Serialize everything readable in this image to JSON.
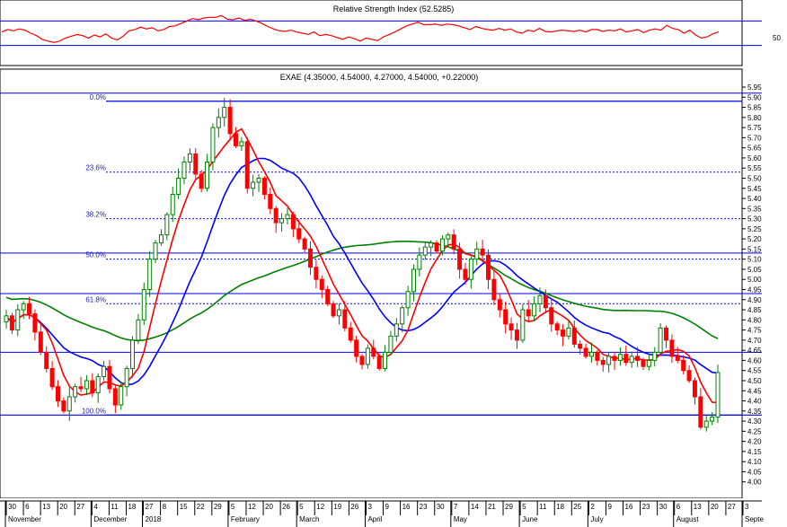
{
  "rsi": {
    "title": "Relative Strength Index (52.5285)",
    "level_label": "50",
    "upper_level": 70,
    "lower_level": 30,
    "line_color": "#ff0000",
    "band_color": "#0000ff"
  },
  "main": {
    "title": "EXAE (4.35000, 4.54000, 4.27000, 4.54000, +0.22000)",
    "colors": {
      "up": "#008000",
      "down": "#ff0000",
      "ma_fast": "#ff0000",
      "ma_mid": "#0000ff",
      "ma_slow": "#008000",
      "fib": "#0000ff"
    }
  },
  "chart_data": [
    {
      "type": "line",
      "title": "Relative Strength Index (52.5285)",
      "ylim": [
        0,
        100
      ],
      "levels": [
        70,
        30
      ],
      "series": [
        {
          "values": [
            52,
            56,
            54,
            57,
            55,
            50,
            46,
            40,
            37,
            35,
            37,
            42,
            45,
            48,
            46,
            42,
            47,
            44,
            49,
            42,
            39,
            45,
            54,
            56,
            60,
            57,
            59,
            54,
            56,
            61,
            62,
            66,
            70,
            74,
            72,
            75,
            76,
            76,
            79,
            73,
            72,
            75,
            71,
            73,
            70,
            66,
            61,
            57,
            54,
            53,
            55,
            52,
            50,
            48,
            52,
            46,
            48,
            46,
            43,
            40,
            44,
            41,
            37,
            42,
            40,
            38,
            44,
            48,
            52,
            57,
            62,
            65,
            68,
            64,
            64,
            65,
            63,
            65,
            64,
            62,
            59,
            56,
            61,
            58,
            56,
            55,
            58,
            55,
            57,
            52,
            50,
            55,
            53,
            58,
            53,
            52,
            54,
            55,
            54,
            53,
            55,
            52,
            56,
            56,
            53,
            55,
            54,
            57,
            52,
            54,
            56,
            51,
            55,
            57,
            55,
            63,
            58,
            56,
            50,
            55,
            47,
            42,
            44,
            49,
            52.5
          ]
        }
      ]
    },
    {
      "type": "candlestick",
      "title": "EXAE (4.35000, 4.54000, 4.27000, 4.54000, +0.22000)",
      "ylim": [
        3.95,
        5.95
      ],
      "y_ticks": [
        "5.95",
        "5.90",
        "5.85",
        "5.80",
        "5.75",
        "5.70",
        "5.65",
        "5.60",
        "5.55",
        "5.50",
        "5.45",
        "5.40",
        "5.35",
        "5.30",
        "5.25",
        "5.20",
        "5.15",
        "5.10",
        "5.05",
        "5.00",
        "4.95",
        "4.90",
        "4.85",
        "4.80",
        "4.75",
        "4.70",
        "4.65",
        "4.60",
        "4.55",
        "4.50",
        "4.45",
        "4.40",
        "4.35",
        "4.30",
        "4.25",
        "4.20",
        "4.15",
        "4.10",
        "4.05",
        "4.00"
      ],
      "x_day_labels": [
        "30",
        "6",
        "13",
        "20",
        "27",
        "4",
        "11",
        "18",
        "27",
        "8",
        "15",
        "22",
        "29",
        "5",
        "12",
        "20",
        "26",
        "5",
        "12",
        "19",
        "26",
        "3",
        "9",
        "16",
        "23",
        "30",
        "7",
        "14",
        "21",
        "29",
        "5",
        "11",
        "18",
        "25",
        "2",
        "9",
        "16",
        "23",
        "30",
        "6",
        "13",
        "20",
        "27",
        "3"
      ],
      "x_month_labels": [
        "November",
        "December",
        "2018",
        "February",
        "March",
        "April",
        "May",
        "June",
        "July",
        "August",
        "Septe"
      ],
      "fibonacci": [
        {
          "label": "0.0%",
          "price": 5.88
        },
        {
          "label": "23.6%",
          "price": 5.53
        },
        {
          "label": "38.2%",
          "price": 5.3
        },
        {
          "label": "50.0%",
          "price": 5.1
        },
        {
          "label": "61.8%",
          "price": 4.88
        },
        {
          "label": "100.0%",
          "price": 4.33
        }
      ],
      "channel_lines": [
        5.92,
        5.13,
        4.93,
        4.64
      ],
      "close": [
        4.82,
        4.75,
        4.85,
        4.88,
        4.83,
        4.74,
        4.64,
        4.56,
        4.47,
        4.4,
        4.35,
        4.42,
        4.47,
        4.46,
        4.5,
        4.44,
        4.52,
        4.57,
        4.46,
        4.38,
        4.47,
        4.56,
        4.7,
        4.8,
        4.95,
        5.1,
        5.18,
        5.22,
        5.32,
        5.42,
        5.5,
        5.58,
        5.62,
        5.52,
        5.45,
        5.58,
        5.75,
        5.8,
        5.85,
        5.72,
        5.66,
        5.68,
        5.45,
        5.48,
        5.5,
        5.42,
        5.35,
        5.28,
        5.3,
        5.32,
        5.25,
        5.2,
        5.15,
        5.06,
        5.0,
        4.95,
        4.88,
        4.82,
        4.85,
        4.76,
        4.7,
        4.62,
        4.58,
        4.66,
        4.62,
        4.56,
        4.64,
        4.72,
        4.78,
        4.86,
        4.94,
        5.05,
        5.12,
        5.16,
        5.18,
        5.14,
        5.2,
        5.22,
        5.15,
        5.05,
        5.0,
        5.1,
        5.15,
        5.12,
        5.0,
        4.9,
        4.85,
        4.78,
        4.75,
        4.7,
        4.85,
        4.82,
        4.88,
        4.92,
        4.86,
        4.78,
        4.75,
        4.72,
        4.76,
        4.68,
        4.66,
        4.62,
        4.64,
        4.6,
        4.58,
        4.62,
        4.6,
        4.63,
        4.59,
        4.62,
        4.6,
        4.57,
        4.6,
        4.64,
        4.76,
        4.7,
        4.62,
        4.6,
        4.55,
        4.5,
        4.42,
        4.27,
        4.3,
        4.32,
        4.54
      ]
    }
  ]
}
